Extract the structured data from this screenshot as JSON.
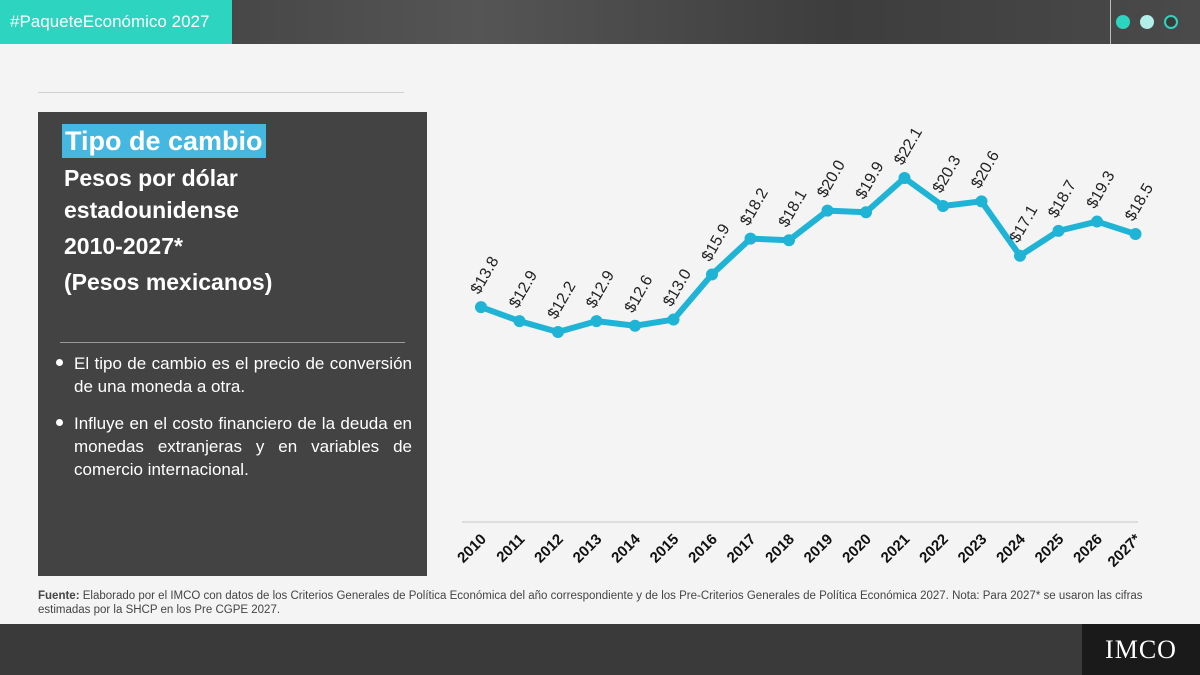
{
  "header": {
    "hashtag": "#PaqueteEconómico 2027"
  },
  "panel": {
    "title": "Tipo de cambio",
    "subtitle_lines": [
      "Pesos por dólar",
      "estadounidense",
      "2010-2027*",
      "(Pesos mexicanos)"
    ],
    "bullets": [
      "El tipo de cambio es el precio de conversión de una moneda a otra.",
      "Influye en el costo financiero de la deuda en monedas extranjeras y en variables de comercio internacional."
    ]
  },
  "footnote": {
    "label": "Fuente:",
    "text": " Elaborado por el IMCO con datos de los Criterios Generales de Política Económica del año correspondiente y de los Pre-Criterios Generales de Política Económica 2027. Nota: Para 2027* se usaron las cifras estimadas por la SHCP en los Pre CGPE 2027."
  },
  "logo": {
    "text": "IMCO"
  },
  "colors": {
    "accent": "#2dd4bf",
    "line": "#1fb3d6",
    "title_bg": "#44b8e0",
    "panel": "#434343"
  },
  "chart_data": {
    "type": "line",
    "title": "",
    "xlabel": "",
    "ylabel": "",
    "categories": [
      "2010",
      "2011",
      "2012",
      "2013",
      "2014",
      "2015",
      "2016",
      "2017",
      "2018",
      "2019",
      "2020",
      "2021",
      "2022",
      "2023",
      "2024",
      "2025",
      "2026",
      "2027*"
    ],
    "values": [
      13.8,
      12.9,
      12.2,
      12.9,
      12.6,
      13.0,
      15.9,
      18.2,
      18.1,
      20.0,
      19.9,
      22.1,
      20.3,
      20.6,
      17.1,
      18.7,
      19.3,
      18.5
    ],
    "labels": [
      "$13.8",
      "$12.9",
      "$12.2",
      "$12.9",
      "$12.6",
      "$13.0",
      "$15.9",
      "$18.2",
      "$18.1",
      "$20.0",
      "$19.9",
      "$22.1",
      "$20.3",
      "$20.6",
      "$17.1",
      "$18.7",
      "$19.3",
      "$18.5"
    ],
    "ylim": [
      0,
      30
    ],
    "grid": false,
    "legend": "none"
  }
}
